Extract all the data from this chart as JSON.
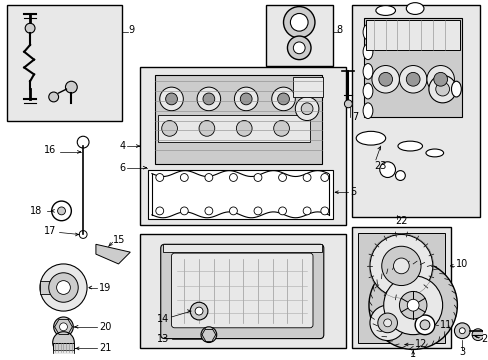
{
  "bg": "#f5f5f5",
  "white": "#ffffff",
  "black": "#000000",
  "lgray": "#e8e8e8",
  "mgray": "#cccccc",
  "dgray": "#999999",
  "fig_w": 4.89,
  "fig_h": 3.6,
  "dpi": 100
}
